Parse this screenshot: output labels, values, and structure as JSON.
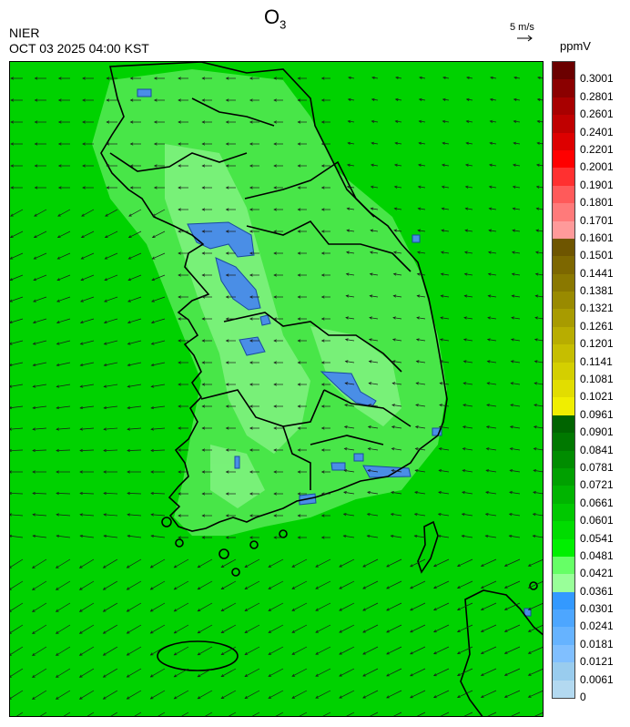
{
  "header": {
    "title_main": "O",
    "title_sub": "3",
    "agency": "NIER",
    "datetime": "OCT 03 2025 04:00 KST",
    "wind_scale_label": "5 m/s",
    "unit": "ppmV"
  },
  "legend": {
    "labels": [
      "0.3001",
      "0.2801",
      "0.2601",
      "0.2401",
      "0.2201",
      "0.2001",
      "0.1901",
      "0.1801",
      "0.1701",
      "0.1601",
      "0.1501",
      "0.1441",
      "0.1381",
      "0.1321",
      "0.1261",
      "0.1201",
      "0.1141",
      "0.1081",
      "0.1021",
      "0.0961",
      "0.0901",
      "0.0841",
      "0.0781",
      "0.0721",
      "0.0661",
      "0.0601",
      "0.0541",
      "0.0481",
      "0.0421",
      "0.0361",
      "0.0301",
      "0.0241",
      "0.0181",
      "0.0121",
      "0.0061",
      "0"
    ],
    "colors": [
      "#6b0000",
      "#8b0000",
      "#a80000",
      "#c00000",
      "#dd0000",
      "#ff0000",
      "#ff3030",
      "#ff5a5a",
      "#ff7a7a",
      "#ff9a9a",
      "#6e5500",
      "#7d6700",
      "#8a7800",
      "#998a00",
      "#a89b00",
      "#b8ad00",
      "#c6be00",
      "#d4cf00",
      "#e2dd00",
      "#f0ee00",
      "#006400",
      "#007800",
      "#008c00",
      "#00a000",
      "#00b400",
      "#00c800",
      "#00dc00",
      "#00f000",
      "#66ff66",
      "#99ff99",
      "#3399ff",
      "#4da6ff",
      "#66b3ff",
      "#80bfff",
      "#99ccee",
      "#b3d9f0"
    ]
  },
  "map": {
    "background_color": "#00d400",
    "land_light_color": "#66ee66",
    "low_ozone_color": "#4a90e8"
  }
}
